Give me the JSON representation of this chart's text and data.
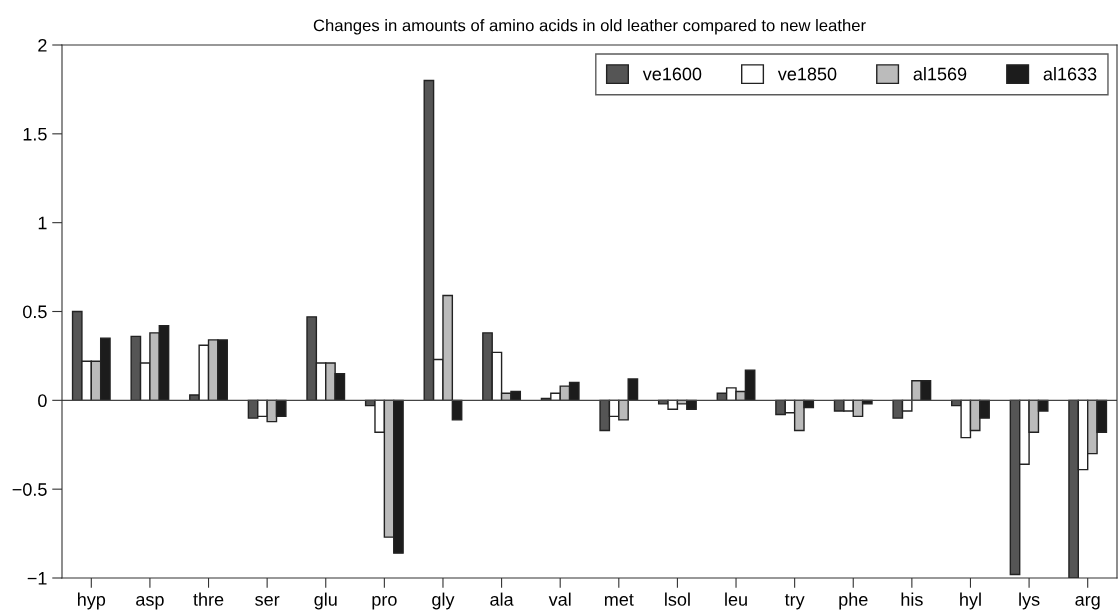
{
  "chart_data": {
    "type": "bar",
    "title": "Changes in amounts of amino acids in old leather compared to new leather",
    "categories": [
      "hyp",
      "asp",
      "thre",
      "ser",
      "glu",
      "pro",
      "gly",
      "ala",
      "val",
      "met",
      "lsol",
      "leu",
      "try",
      "phe",
      "his",
      "hyl",
      "lys",
      "arg"
    ],
    "series": [
      {
        "name": "ve1600",
        "color": "#555555",
        "values": [
          0.5,
          0.36,
          0.03,
          -0.1,
          0.47,
          -0.03,
          1.8,
          0.38,
          0.01,
          -0.17,
          -0.02,
          0.04,
          -0.08,
          -0.06,
          -0.1,
          -0.03,
          -0.98,
          -1.0
        ]
      },
      {
        "name": "ve1850",
        "color": "#ffffff",
        "values": [
          0.22,
          0.21,
          0.31,
          -0.09,
          0.21,
          -0.18,
          0.23,
          0.27,
          0.04,
          -0.09,
          -0.05,
          0.07,
          -0.07,
          -0.06,
          -0.06,
          -0.21,
          -0.36,
          -0.39
        ]
      },
      {
        "name": "al1569",
        "color": "#bbbbbb",
        "values": [
          0.22,
          0.38,
          0.34,
          -0.12,
          0.21,
          -0.77,
          0.59,
          0.04,
          0.08,
          -0.11,
          -0.02,
          0.05,
          -0.17,
          -0.09,
          0.11,
          -0.17,
          -0.18,
          -0.3
        ]
      },
      {
        "name": "al1633",
        "color": "#1c1c1c",
        "values": [
          0.35,
          0.42,
          0.34,
          -0.09,
          0.15,
          -0.86,
          -0.11,
          0.05,
          0.1,
          0.12,
          -0.05,
          0.17,
          -0.04,
          -0.02,
          0.11,
          -0.1,
          -0.06,
          -0.18
        ]
      }
    ],
    "ylim": [
      -1,
      2
    ],
    "yticks": [
      {
        "value": -1,
        "label": "−1"
      },
      {
        "value": -0.5,
        "label": "−0.5"
      },
      0,
      0.5,
      1,
      1.5,
      2
    ],
    "ref_lines": [
      {
        "axis": "y",
        "value": 0,
        "color": "#444444",
        "line_style": "solid"
      }
    ],
    "legend": "top right"
  }
}
